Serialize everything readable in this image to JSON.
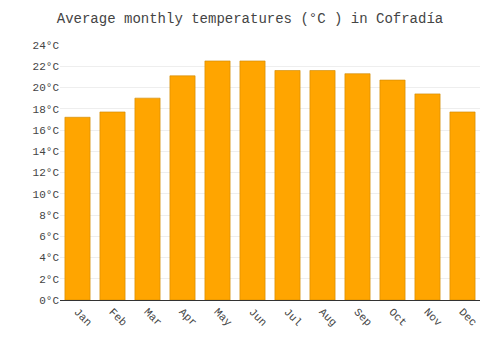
{
  "chart_data": {
    "type": "bar",
    "title": "Average monthly temperatures (°C ) in Cofradía",
    "categories": [
      "Jan",
      "Feb",
      "Mar",
      "Apr",
      "May",
      "Jun",
      "Jul",
      "Aug",
      "Sep",
      "Oct",
      "Nov",
      "Dec"
    ],
    "values": [
      17.2,
      17.7,
      19.0,
      21.1,
      22.5,
      22.5,
      21.6,
      21.6,
      21.3,
      20.7,
      19.4,
      17.7
    ],
    "color": "#FFA500",
    "ylim": [
      0,
      24
    ],
    "yticks": [
      {
        "value": 0,
        "label": "0°C"
      },
      {
        "value": 2,
        "label": "2°C"
      },
      {
        "value": 4,
        "label": "4°C"
      },
      {
        "value": 6,
        "label": "6°C"
      },
      {
        "value": 8,
        "label": "8°C"
      },
      {
        "value": 10,
        "label": "10°C"
      },
      {
        "value": 12,
        "label": "12°C"
      },
      {
        "value": 14,
        "label": "14°C"
      },
      {
        "value": 16,
        "label": "16°C"
      },
      {
        "value": 18,
        "label": "18°C"
      },
      {
        "value": 20,
        "label": "20°C"
      },
      {
        "value": 22,
        "label": "22°C"
      },
      {
        "value": 24,
        "label": "24°C"
      }
    ],
    "grid": true
  }
}
